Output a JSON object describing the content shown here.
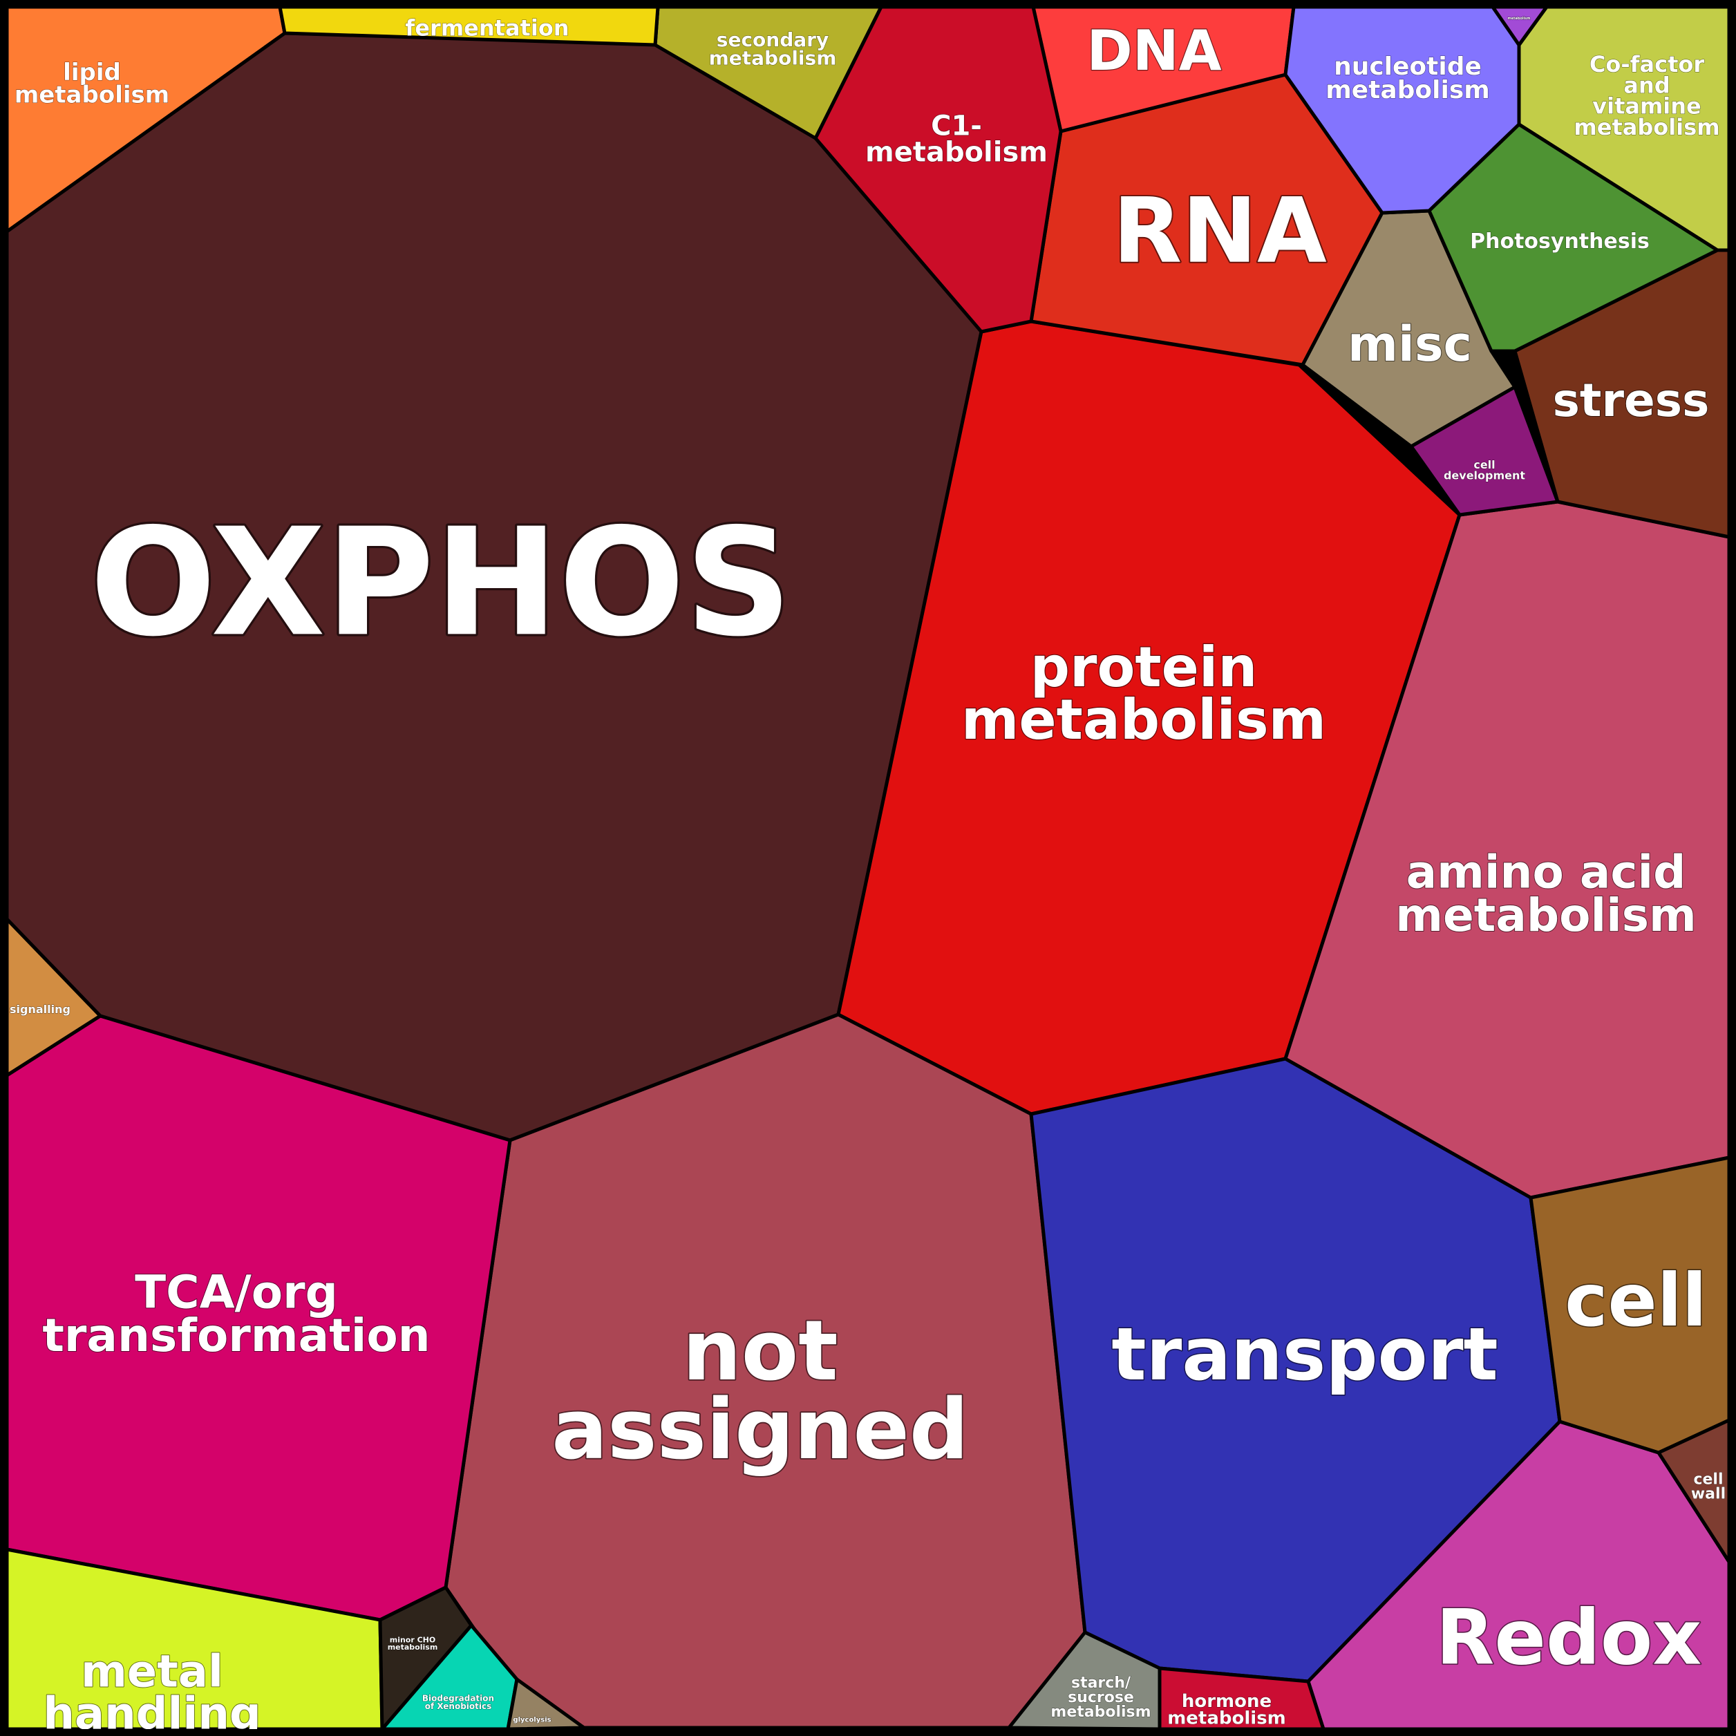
{
  "regions": [
    {
      "id": "oxphos",
      "label": [
        "OXPHOS"
      ],
      "color": "#522123"
    },
    {
      "id": "protein-metabolism",
      "label": [
        "protein",
        "metabolism"
      ],
      "color": "#e11010"
    },
    {
      "id": "not-assigned",
      "label": [
        "not",
        "assigned"
      ],
      "color": "#ab4654"
    },
    {
      "id": "transport",
      "label": [
        "transport"
      ],
      "color": "#3232b3"
    },
    {
      "id": "amino-acid-metabolism",
      "label": [
        "amino acid",
        "metabolism"
      ],
      "color": "#c44868"
    },
    {
      "id": "tca-org-transformation",
      "label": [
        "TCA/org",
        "transformation"
      ],
      "color": "#d4026a"
    },
    {
      "id": "rna",
      "label": [
        "RNA"
      ],
      "color": "#df2e1c"
    },
    {
      "id": "redox",
      "label": [
        "Redox"
      ],
      "color": "#c83ea4"
    },
    {
      "id": "cell",
      "label": [
        "cell"
      ],
      "color": "#996428"
    },
    {
      "id": "metal-handling",
      "label": [
        "metal",
        "handling"
      ],
      "color": "#d5f426"
    },
    {
      "id": "dna",
      "label": [
        "DNA"
      ],
      "color": "#fd3d3d"
    },
    {
      "id": "stress",
      "label": [
        "stress"
      ],
      "color": "#77321a"
    },
    {
      "id": "misc",
      "label": [
        "misc"
      ],
      "color": "#9a896a"
    },
    {
      "id": "c1-metabolism",
      "label": [
        "C1-",
        "metabolism"
      ],
      "color": "#cb0d28"
    },
    {
      "id": "nucleotide-metabolism",
      "label": [
        "nucleotide",
        "metabolism"
      ],
      "color": "#8374fe"
    },
    {
      "id": "cofactor-vitamine-metabolism",
      "label": [
        "Co-factor",
        "and",
        "vitamine",
        "metabolism"
      ],
      "color": "#c2cd48"
    },
    {
      "id": "photosynthesis",
      "label": [
        "Photosynthesis"
      ],
      "color": "#4e9333"
    },
    {
      "id": "lipid-metabolism",
      "label": [
        "lipid",
        "metabolism"
      ],
      "color": "#fe7c33"
    },
    {
      "id": "secondary-metabolism",
      "label": [
        "secondary",
        "metabolism"
      ],
      "color": "#b5b12a"
    },
    {
      "id": "fermentation",
      "label": [
        "fermentation"
      ],
      "color": "#f1d80e"
    },
    {
      "id": "cell-development",
      "label": [
        "cell",
        "development"
      ],
      "color": "#8c197a"
    },
    {
      "id": "signalling",
      "label": [
        "signalling"
      ],
      "color": "#d28d42"
    },
    {
      "id": "cell-wall",
      "label": [
        "cell",
        "wall"
      ],
      "color": "#7e3d31"
    },
    {
      "id": "starch-sucrose-metabolism",
      "label": [
        "starch/",
        "sucrose",
        "metabolism"
      ],
      "color": "#858a7f"
    },
    {
      "id": "hormone-metabolism",
      "label": [
        "hormone",
        "metabolism"
      ],
      "color": "#cb0d33"
    },
    {
      "id": "minor-cho-metabolism",
      "label": [
        "minor CHO",
        "metabolism"
      ],
      "color": "#2e241b"
    },
    {
      "id": "biodegradation-of-xenobiotics",
      "label": [
        "Biodegradation",
        "of Xenobiotics"
      ],
      "color": "#07d5b3"
    },
    {
      "id": "glycolysis",
      "label": [
        "glycolysis"
      ],
      "color": "#958263"
    },
    {
      "id": "tiny-metabolism",
      "label": [
        "metabolism"
      ],
      "color": "#a24bd6"
    }
  ]
}
